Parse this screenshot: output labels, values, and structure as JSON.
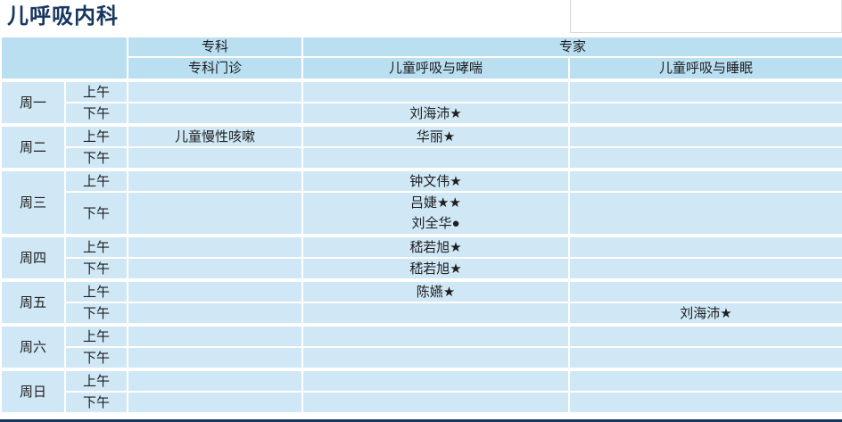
{
  "title": "儿呼吸内科",
  "table": {
    "headers": {
      "specialty_group": "专科",
      "expert_group": "专家",
      "specialty_clinic": "专科门诊",
      "asthma_clinic": "儿童呼吸与哮喘",
      "sleep_clinic": "儿童呼吸与睡眠"
    },
    "time_labels": {
      "am": "上午",
      "pm": "下午"
    },
    "days": [
      {
        "name": "周一",
        "pm": {
          "asthma": "刘海沛★"
        }
      },
      {
        "name": "周二",
        "am": {
          "clinic": "儿童慢性咳嗽",
          "asthma": "华丽★"
        }
      },
      {
        "name": "周三",
        "am": {
          "asthma": "钟文伟★"
        },
        "pm": {
          "asthma_lines": [
            "吕婕★★",
            "刘全华●"
          ]
        }
      },
      {
        "name": "周四",
        "am": {
          "asthma": "嵇若旭★"
        },
        "pm": {
          "asthma": "嵇若旭★"
        }
      },
      {
        "name": "周五",
        "am": {
          "asthma": "陈嬿★"
        },
        "pm": {
          "sleep": "刘海沛★"
        }
      },
      {
        "name": "周六"
      },
      {
        "name": "周日"
      }
    ]
  },
  "colors": {
    "title_text": "#17375E",
    "header_bg": "#B9DFF1",
    "cell_bg": "#D0E8F5",
    "grid_line": "#FFFFFF",
    "bottom_rule": "#17375E"
  }
}
